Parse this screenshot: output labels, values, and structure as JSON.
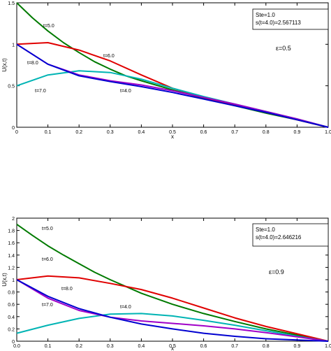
{
  "chart_data": [
    {
      "type": "line",
      "xlabel": "x",
      "ylabel": "U(x,t)",
      "xlim": [
        0,
        1.0
      ],
      "ylim": [
        0,
        1.5
      ],
      "xticks": [
        "0",
        "0.1",
        "0.2",
        "0.3",
        "0.4",
        "0.5",
        "0.6",
        "0.7",
        "0.8",
        "0.9",
        "1.0"
      ],
      "yticks": [
        "0",
        "0.5",
        "1",
        "1.5"
      ],
      "info_box": [
        "Ste=1.0",
        "s(t=4.0)=2.567113"
      ],
      "epsilon_label": "ε=0.5",
      "grid": false,
      "series": [
        {
          "name": "t=5.0",
          "color": "#007a00",
          "x": [
            0,
            0.05,
            0.1,
            0.15,
            0.2,
            0.25,
            0.3,
            0.35,
            0.4,
            0.5,
            0.6,
            0.7,
            0.8,
            0.9,
            1.0
          ],
          "y": [
            1.5,
            1.32,
            1.16,
            1.02,
            0.9,
            0.79,
            0.7,
            0.62,
            0.56,
            0.45,
            0.35,
            0.26,
            0.17,
            0.09,
            0
          ]
        },
        {
          "name": "t=6.0",
          "color": "#e00000",
          "x": [
            0,
            0.1,
            0.2,
            0.3,
            0.4,
            0.5,
            0.6,
            0.7,
            0.8,
            0.9,
            1.0
          ],
          "y": [
            1.0,
            1.02,
            0.93,
            0.8,
            0.63,
            0.47,
            0.36,
            0.27,
            0.18,
            0.09,
            0
          ]
        },
        {
          "name": "t=7.0",
          "color": "#00b4b4",
          "x": [
            0,
            0.1,
            0.2,
            0.3,
            0.4,
            0.5,
            0.6,
            0.7,
            0.8,
            0.9,
            1.0
          ],
          "y": [
            0.5,
            0.63,
            0.68,
            0.66,
            0.58,
            0.47,
            0.37,
            0.28,
            0.19,
            0.1,
            0
          ]
        },
        {
          "name": "t=8.0",
          "color": "#a000c8",
          "x": [
            0,
            0.1,
            0.2,
            0.3,
            0.4,
            0.5,
            0.6,
            0.7,
            0.8,
            0.9,
            1.0
          ],
          "y": [
            1.0,
            0.76,
            0.63,
            0.56,
            0.51,
            0.44,
            0.36,
            0.28,
            0.19,
            0.1,
            0
          ]
        },
        {
          "name": "t=4.0",
          "color": "#0000d0",
          "x": [
            0,
            0.1,
            0.2,
            0.3,
            0.4,
            0.5,
            0.6,
            0.7,
            0.8,
            0.9,
            1.0
          ],
          "y": [
            1.0,
            0.76,
            0.62,
            0.55,
            0.49,
            0.42,
            0.34,
            0.26,
            0.18,
            0.09,
            0
          ]
        }
      ]
    },
    {
      "type": "line",
      "xlabel": "x",
      "ylabel": "U(x,t)",
      "xlim": [
        0,
        1.0
      ],
      "ylim": [
        0,
        2
      ],
      "xticks": [
        "0.0",
        "0.1",
        "0.2",
        "0.3",
        "0.4",
        "0.5",
        "0.6",
        "0.7",
        "0.8",
        "0.9",
        "1.0"
      ],
      "yticks": [
        "0",
        "0.2",
        "0.4",
        "0.6",
        "0.8",
        "1",
        "1.2",
        "1.4",
        "1.6",
        "1.8",
        "2"
      ],
      "info_box": [
        "Ste=1.0",
        "s(t=4.0)=2.646216"
      ],
      "epsilon_label": "ε=0.9",
      "grid": false,
      "series": [
        {
          "name": "t=5.0",
          "color": "#007a00",
          "x": [
            0,
            0.05,
            0.1,
            0.15,
            0.2,
            0.25,
            0.3,
            0.35,
            0.4,
            0.5,
            0.6,
            0.7,
            0.8,
            0.9,
            1.0
          ],
          "y": [
            1.9,
            1.72,
            1.55,
            1.4,
            1.26,
            1.12,
            1.0,
            0.89,
            0.78,
            0.6,
            0.45,
            0.32,
            0.2,
            0.1,
            0
          ]
        },
        {
          "name": "t=6.0",
          "color": "#e00000",
          "x": [
            0,
            0.1,
            0.2,
            0.3,
            0.4,
            0.5,
            0.6,
            0.7,
            0.8,
            0.9,
            1.0
          ],
          "y": [
            1.0,
            1.06,
            1.03,
            0.94,
            0.84,
            0.7,
            0.54,
            0.38,
            0.24,
            0.12,
            0
          ]
        },
        {
          "name": "t=7.0",
          "color": "#00b4b4",
          "x": [
            0,
            0.1,
            0.2,
            0.3,
            0.4,
            0.5,
            0.6,
            0.7,
            0.8,
            0.9,
            1.0
          ],
          "y": [
            0.13,
            0.26,
            0.37,
            0.44,
            0.45,
            0.41,
            0.34,
            0.26,
            0.17,
            0.08,
            0
          ]
        },
        {
          "name": "t=8.0",
          "color": "#a000c8",
          "x": [
            0,
            0.1,
            0.2,
            0.3,
            0.4,
            0.5,
            0.6,
            0.7,
            0.8,
            0.9,
            1.0
          ],
          "y": [
            1.0,
            0.7,
            0.5,
            0.39,
            0.33,
            0.29,
            0.25,
            0.2,
            0.14,
            0.07,
            0
          ]
        },
        {
          "name": "t=4.0",
          "color": "#0000d0",
          "x": [
            0,
            0.1,
            0.2,
            0.3,
            0.4,
            0.5,
            0.6,
            0.7,
            0.8,
            0.9,
            1.0
          ],
          "y": [
            1.0,
            0.73,
            0.53,
            0.39,
            0.28,
            0.2,
            0.13,
            0.08,
            0.04,
            0.02,
            0
          ]
        }
      ]
    }
  ]
}
